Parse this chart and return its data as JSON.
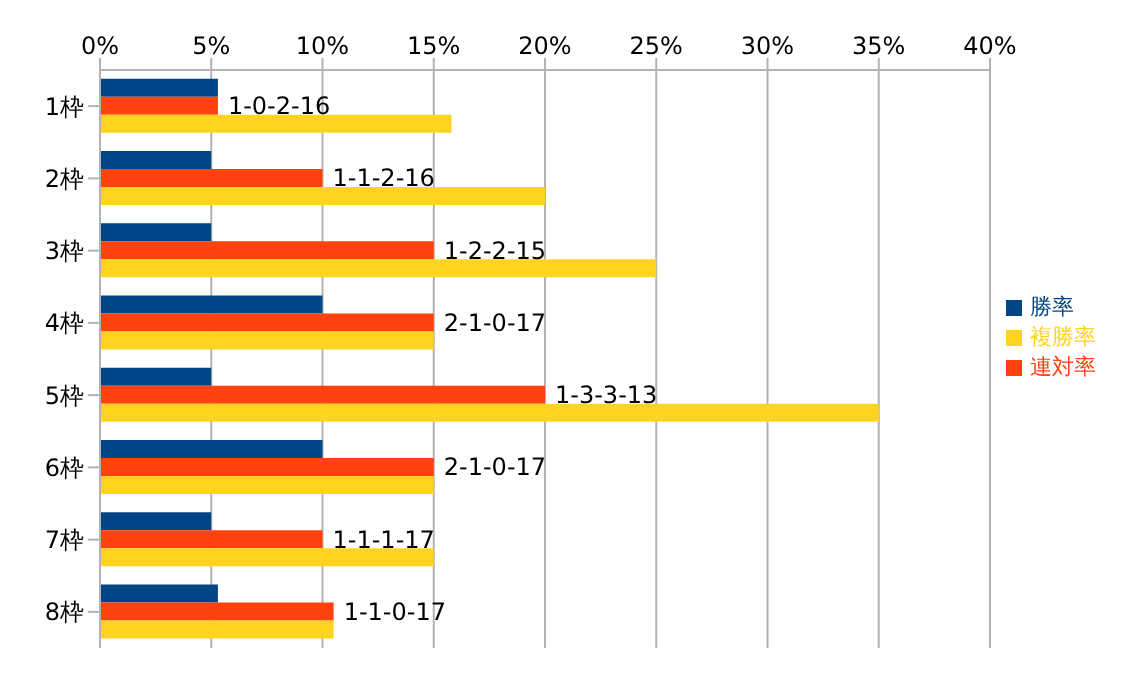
{
  "chart_data": {
    "type": "bar",
    "orientation": "horizontal",
    "categories": [
      "1枠",
      "2枠",
      "3枠",
      "4枠",
      "5枠",
      "6枠",
      "7枠",
      "8枠"
    ],
    "series": [
      {
        "name": "勝率",
        "color": "#004586",
        "values": [
          5.3,
          5,
          5,
          10,
          5,
          10,
          5,
          5.3
        ]
      },
      {
        "name": "連対率",
        "color": "#ff420e",
        "values": [
          5.3,
          10,
          15,
          15,
          20,
          15,
          10,
          10.5
        ],
        "value_labels": [
          "1-0-2-16",
          "1-1-2-16",
          "1-2-2-15",
          "2-1-0-17",
          "1-3-3-13",
          "2-1-0-17",
          "1-1-1-17",
          "1-1-0-17"
        ]
      },
      {
        "name": "複勝率",
        "color": "#ffd320",
        "values": [
          15.8,
          20,
          25,
          15,
          35,
          15,
          15,
          10.5
        ]
      }
    ],
    "xlim": [
      0,
      40
    ],
    "xticks": [
      {
        "value": 0,
        "label": "0%"
      },
      {
        "value": 5,
        "label": "5%"
      },
      {
        "value": 10,
        "label": "10%"
      },
      {
        "value": 15,
        "label": "15%"
      },
      {
        "value": 20,
        "label": "20%"
      },
      {
        "value": 25,
        "label": "25%"
      },
      {
        "value": 30,
        "label": "30%"
      },
      {
        "value": 35,
        "label": "35%"
      },
      {
        "value": 40,
        "label": "40%"
      }
    ],
    "grid": "x",
    "legend": "right"
  }
}
